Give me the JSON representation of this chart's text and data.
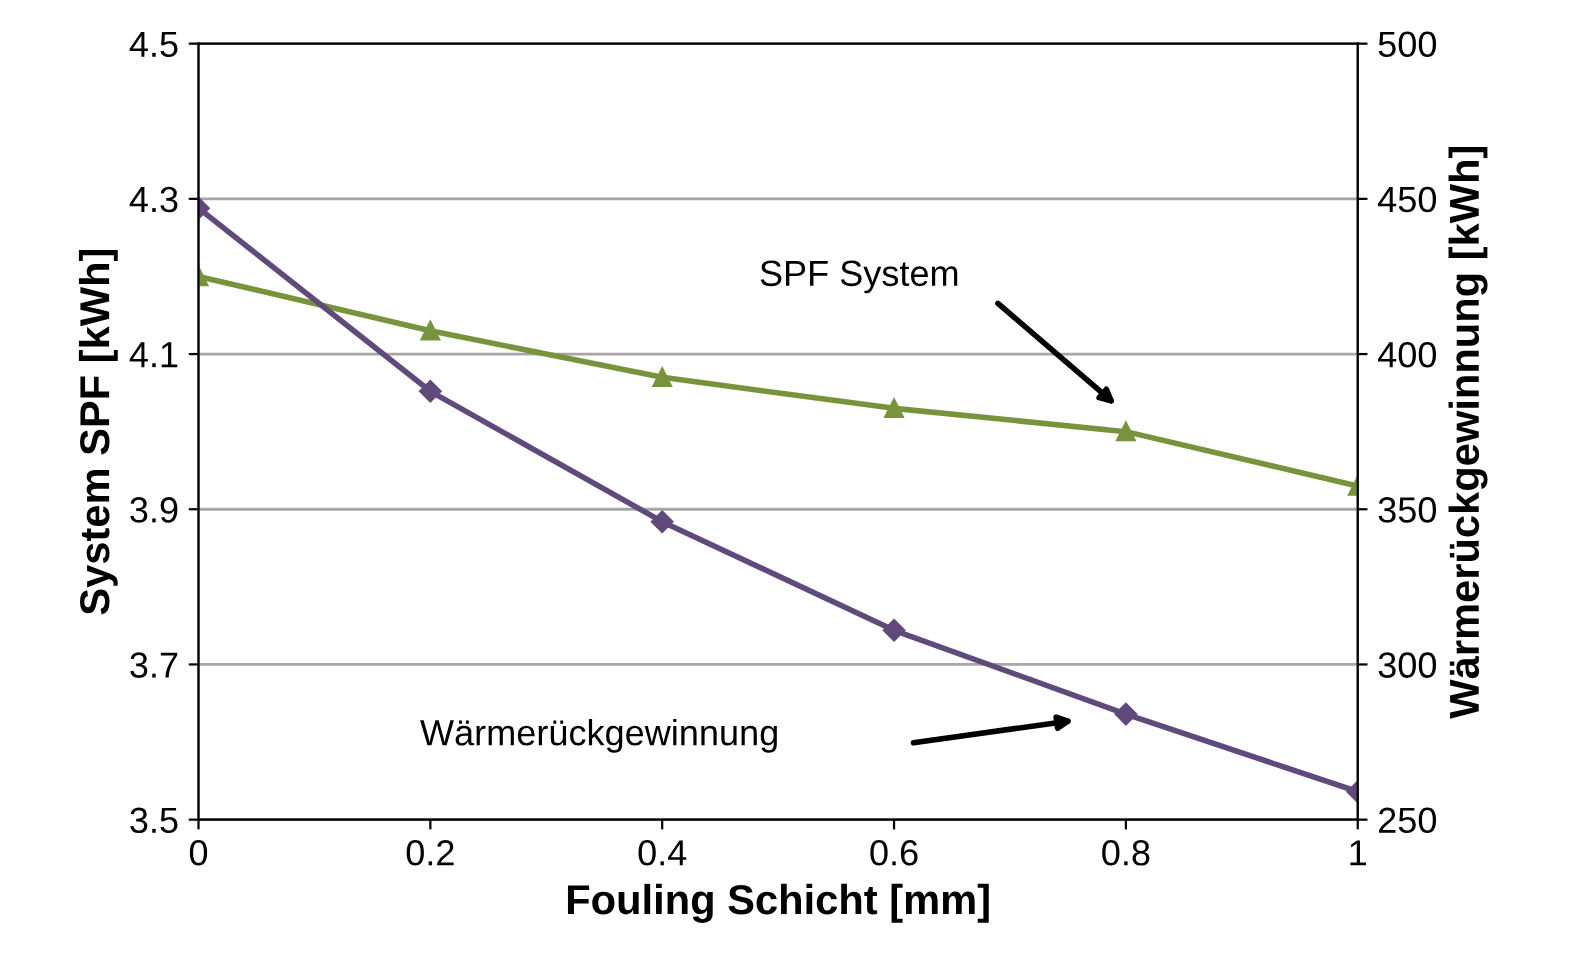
{
  "chart_data": {
    "type": "line",
    "xlabel": "Fouling Schicht [mm]",
    "ylabel": "System SPF [kWh]",
    "y2label": "Wärmerückgewinnung [kWh]",
    "x": [
      0,
      0.2,
      0.4,
      0.6,
      0.8,
      1
    ],
    "series": [
      {
        "color": "#77933c",
        "marker": "triangle",
        "values": [
          4.2,
          4.13,
          4.07,
          4.03,
          4.0,
          3.93
        ]
      },
      {
        "color": "#604a7b",
        "marker": "diamond",
        "axis": "y2",
        "values": [
          447,
          388,
          346,
          311,
          284,
          259
        ]
      }
    ],
    "xlim": [
      0,
      1
    ],
    "xticks": [
      0,
      0.2,
      0.4,
      0.6,
      0.8,
      1
    ],
    "ylim": [
      3.5,
      4.5
    ],
    "yticks": [
      3.5,
      3.7,
      3.9,
      4.1,
      4.3,
      4.5
    ],
    "y2lim": [
      250,
      500
    ],
    "y2ticks": [
      250,
      300,
      350,
      400,
      450,
      500
    ],
    "grid": "y",
    "line_style": "solid",
    "annotations": [
      "SPF System",
      "Wärmerückgewinnung"
    ]
  }
}
